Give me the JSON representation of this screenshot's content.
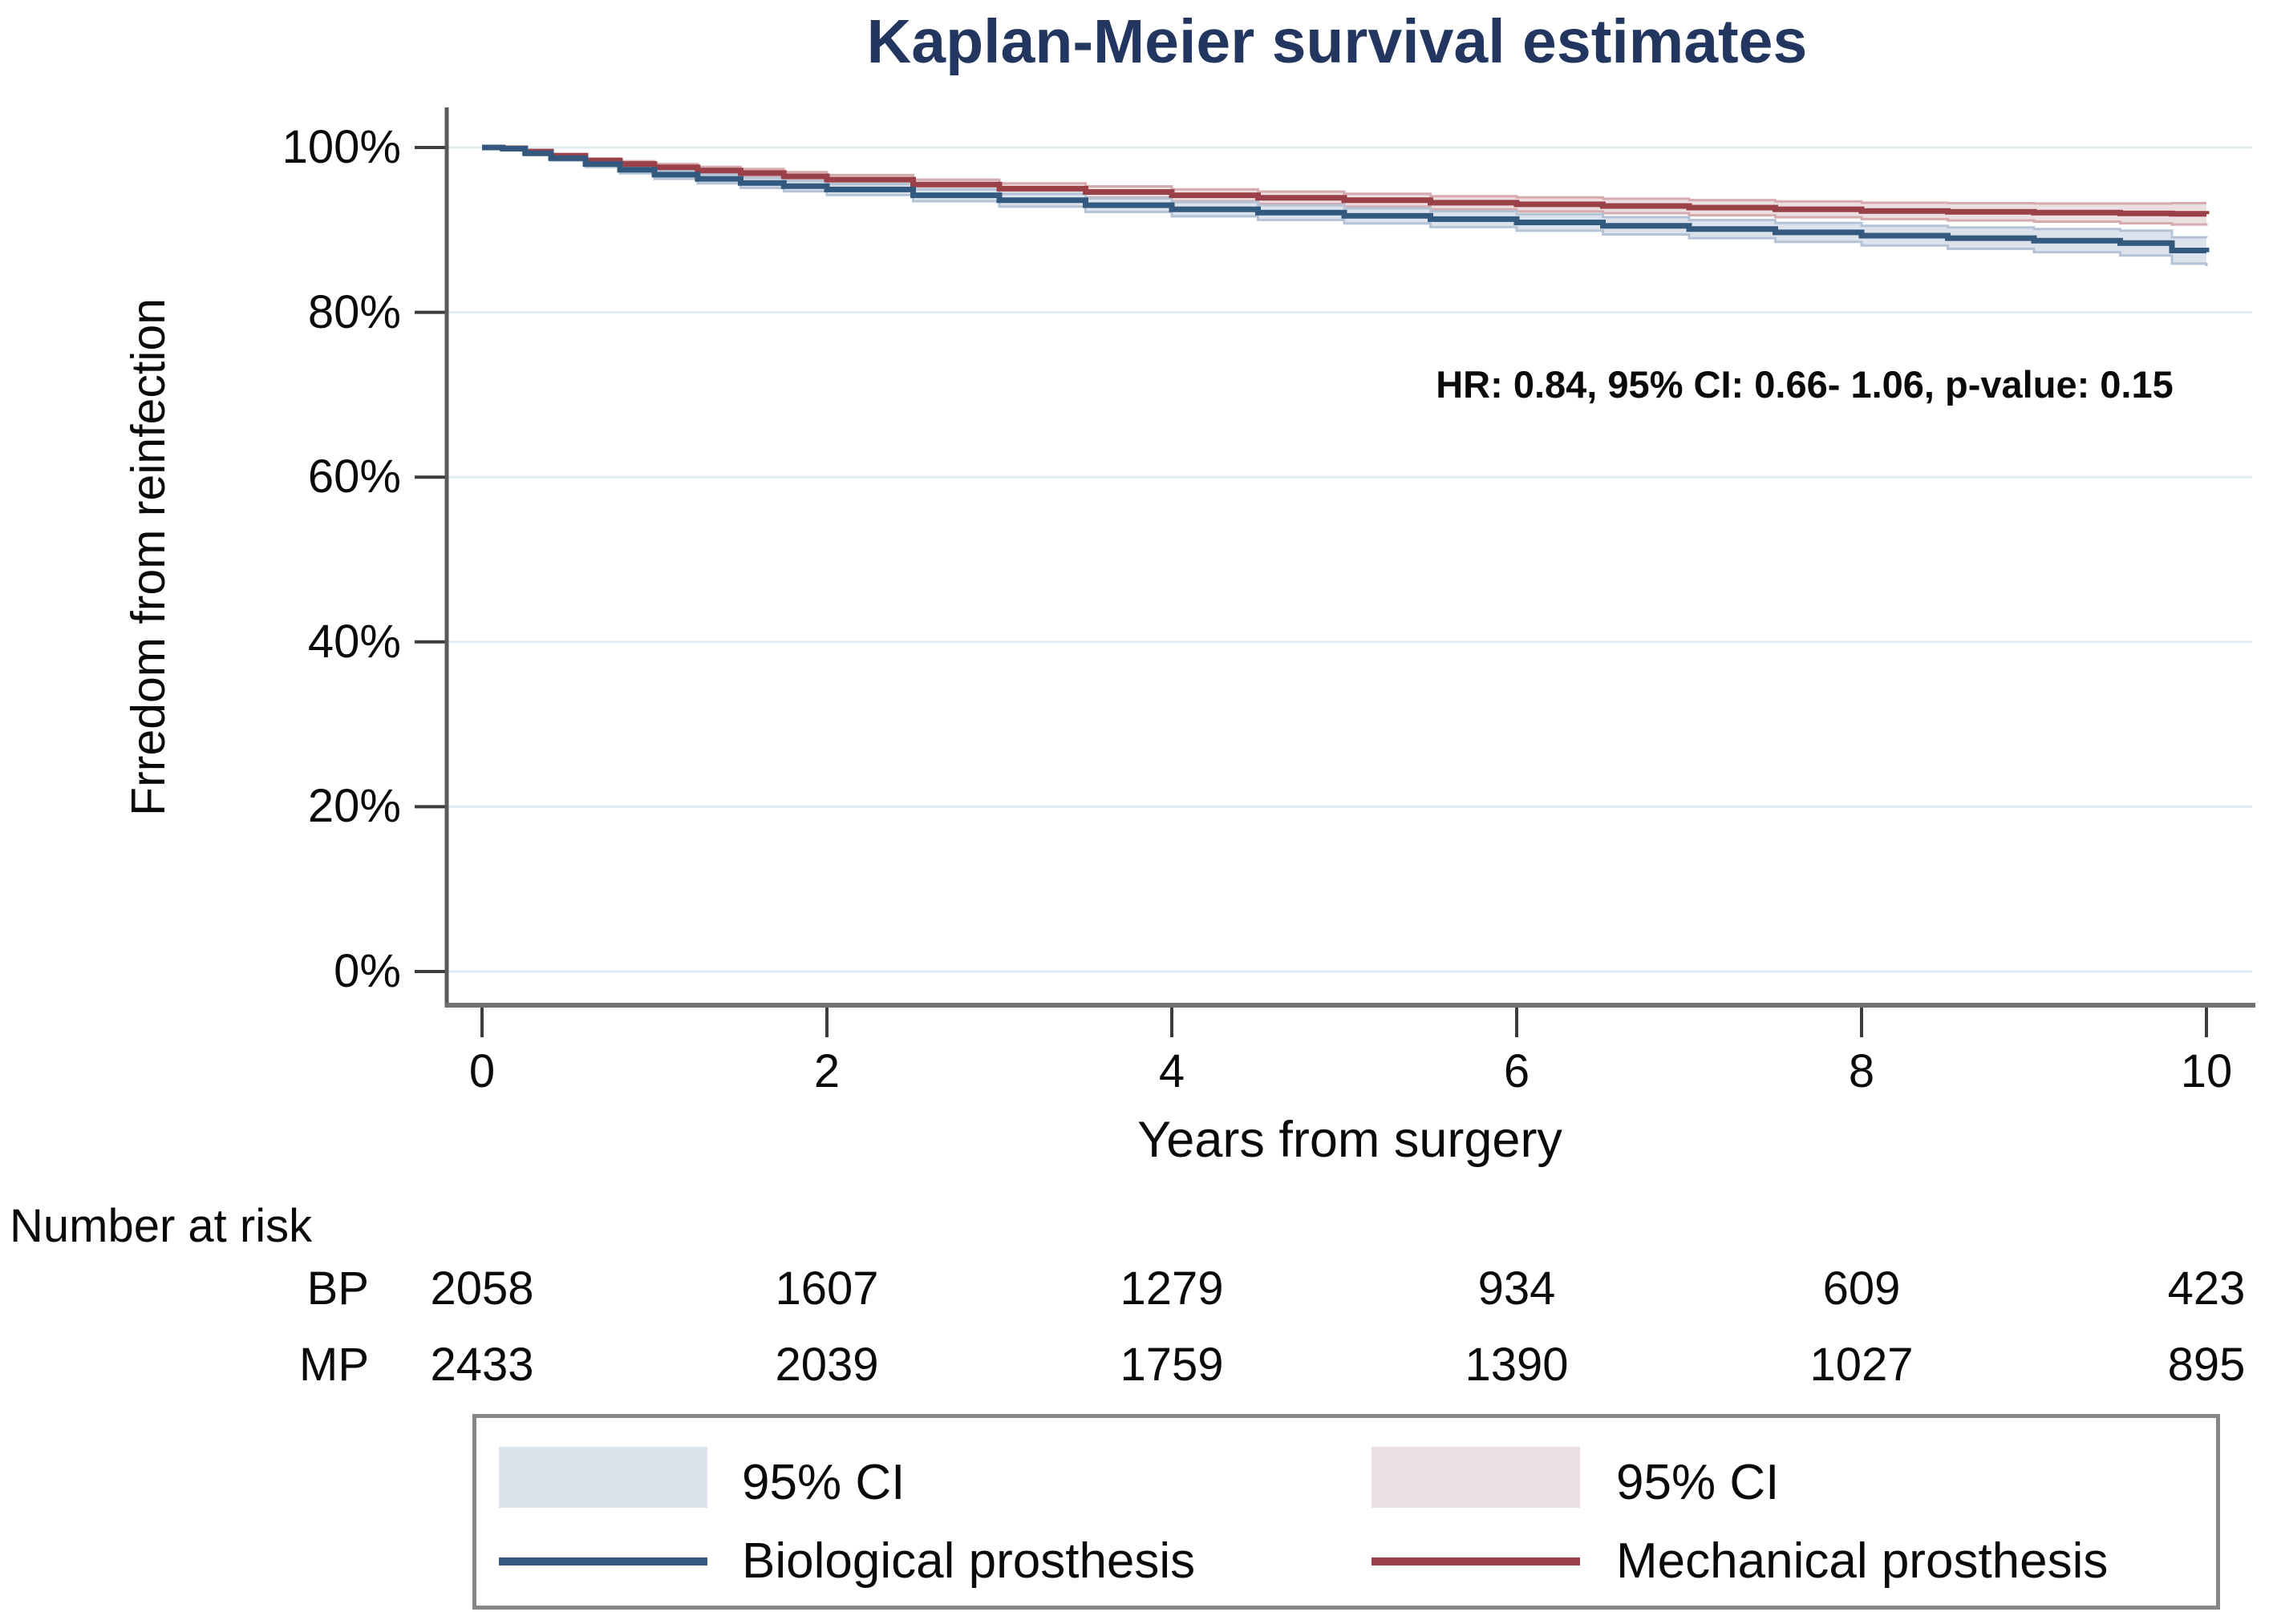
{
  "chart_data": {
    "type": "line",
    "subtype": "kaplan-meier-step",
    "title": "Kaplan-Meier survival estimates",
    "title_color": "#22365f",
    "annotation": "HR: 0.84, 95% CI: 0.66- 1.06, p-value: 0.15",
    "grid": true,
    "legend_position": "bottom",
    "x_axis": {
      "label": "Years from surgery",
      "min": 0,
      "max": 10,
      "tick_values": [
        0,
        2,
        4,
        6,
        8,
        10
      ],
      "ticks": [
        "0",
        "2",
        "4",
        "6",
        "8",
        "10"
      ]
    },
    "y_axis": {
      "label": "Frredom from reinfection",
      "min": 0,
      "max": 100,
      "tick_values": [
        100,
        80,
        60,
        40,
        20,
        0
      ],
      "ticks": [
        "100%",
        "80%",
        "60%",
        "40%",
        "20%",
        "0%"
      ]
    },
    "series": [
      {
        "name": "Mechanical prosthesis",
        "short_code": "MP",
        "color": "#9a4048",
        "ci_color": "#ecdfe1",
        "ci_edge_color": "#d6abb0",
        "ci_label": "95% CI",
        "x": [
          0,
          0.12,
          0.25,
          0.4,
          0.6,
          0.8,
          1,
          1.25,
          1.5,
          1.75,
          2,
          2.5,
          3,
          3.5,
          4,
          4.5,
          5,
          5.5,
          6,
          6.5,
          7,
          7.5,
          8,
          8.5,
          9,
          9.5,
          9.8,
          10
        ],
        "y": [
          100,
          99.9,
          99.5,
          99.0,
          98.4,
          98.0,
          97.6,
          97.2,
          96.9,
          96.5,
          96.1,
          95.5,
          95.0,
          94.6,
          94.2,
          93.9,
          93.6,
          93.3,
          93.1,
          92.9,
          92.7,
          92.5,
          92.3,
          92.2,
          92.1,
          92.0,
          91.95,
          91.9
        ],
        "ci_halfwidth": [
          0.08,
          0.1,
          0.15,
          0.2,
          0.28,
          0.34,
          0.4,
          0.44,
          0.48,
          0.52,
          0.55,
          0.6,
          0.65,
          0.68,
          0.72,
          0.75,
          0.78,
          0.8,
          0.85,
          0.88,
          0.92,
          0.96,
          1.0,
          1.05,
          1.1,
          1.2,
          1.3,
          1.35
        ]
      },
      {
        "name": "Biological prosthesis",
        "short_code": "BP",
        "color": "#33597f",
        "ci_color": "#dde3ec",
        "ci_edge_color": "#b4c3d6",
        "ci_label": "95% CI",
        "x": [
          0,
          0.12,
          0.25,
          0.4,
          0.6,
          0.8,
          1,
          1.25,
          1.5,
          1.75,
          2,
          2.5,
          3,
          3.5,
          4,
          4.5,
          5,
          5.5,
          6,
          6.5,
          7,
          7.5,
          8,
          8.5,
          9,
          9.5,
          9.8,
          10
        ],
        "y": [
          100,
          99.85,
          99.3,
          98.7,
          98.0,
          97.3,
          96.7,
          96.2,
          95.7,
          95.3,
          94.9,
          94.2,
          93.6,
          93.0,
          92.5,
          92.1,
          91.7,
          91.3,
          90.9,
          90.5,
          90.1,
          89.7,
          89.3,
          89.0,
          88.7,
          88.4,
          87.5,
          87.3
        ],
        "ci_halfwidth": [
          0.08,
          0.12,
          0.2,
          0.28,
          0.36,
          0.44,
          0.5,
          0.55,
          0.6,
          0.63,
          0.66,
          0.72,
          0.77,
          0.82,
          0.86,
          0.89,
          0.92,
          0.96,
          1.0,
          1.05,
          1.1,
          1.15,
          1.2,
          1.3,
          1.4,
          1.5,
          1.6,
          1.7
        ]
      }
    ]
  },
  "risk_table": {
    "title": "Number at risk",
    "time_points": [
      0,
      2,
      4,
      6,
      8,
      10
    ],
    "rows": [
      {
        "label": "BP",
        "values": [
          "2058",
          "1607",
          "1279",
          "934",
          "609",
          "423"
        ]
      },
      {
        "label": "MP",
        "values": [
          "2433",
          "2039",
          "1759",
          "1390",
          "1027",
          "895"
        ]
      }
    ]
  },
  "legend": {
    "items": [
      {
        "type": "area",
        "series": "Biological prosthesis",
        "label": "95% CI"
      },
      {
        "type": "area",
        "series": "Mechanical prosthesis",
        "label": "95% CI"
      },
      {
        "type": "line",
        "series": "Biological prosthesis",
        "label": "Biological prosthesis"
      },
      {
        "type": "line",
        "series": "Mechanical prosthesis",
        "label": "Mechanical prosthesis"
      }
    ]
  }
}
